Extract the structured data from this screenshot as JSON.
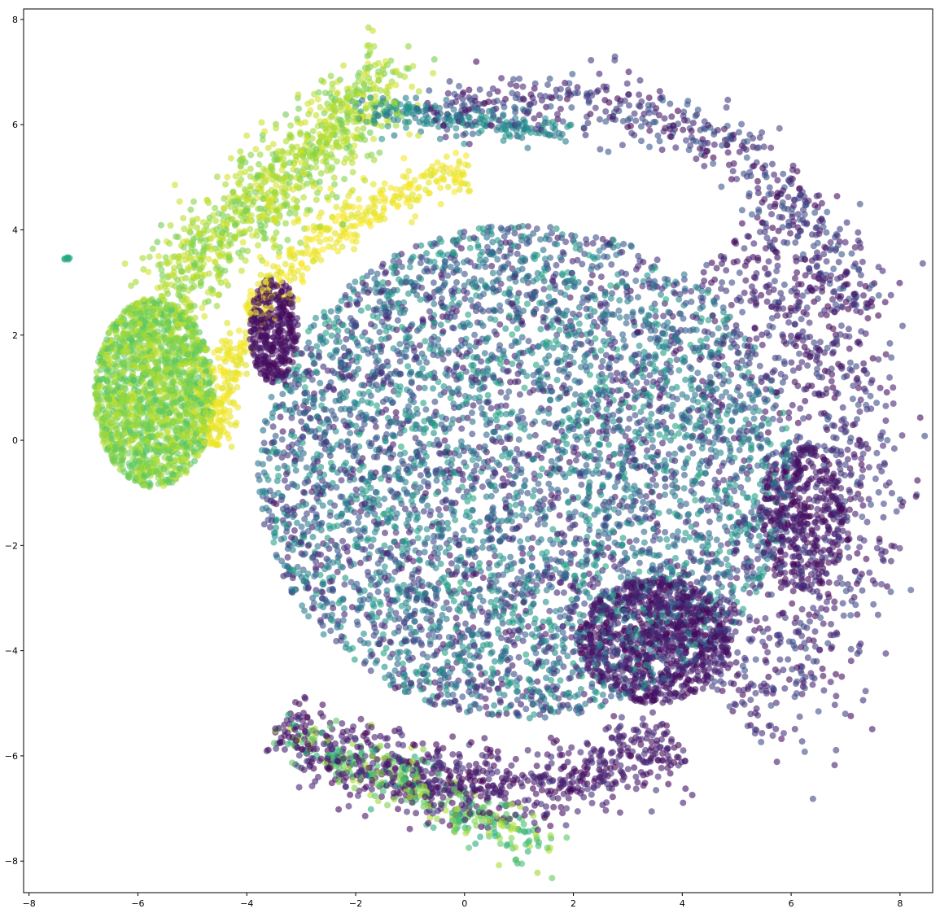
{
  "chart_data": {
    "type": "scatter",
    "title": "",
    "xlabel": "",
    "ylabel": "",
    "xlim": [
      -8.1,
      8.6
    ],
    "ylim": [
      -8.6,
      8.2
    ],
    "xticks": [
      -8,
      -6,
      -4,
      -2,
      0,
      2,
      4,
      6,
      8
    ],
    "yticks": [
      -8,
      -6,
      -4,
      -2,
      0,
      2,
      4,
      6,
      8
    ],
    "xtick_labels": [
      "−8",
      "−6",
      "−4",
      "−2",
      "0",
      "2",
      "4",
      "6",
      "8"
    ],
    "ytick_labels": [
      "−8",
      "−6",
      "−4",
      "−2",
      "0",
      "2",
      "4",
      "6",
      "8"
    ],
    "grid": false,
    "legend": "none",
    "colormap": "viridis",
    "colormap_stops": [
      "#440154",
      "#472c7a",
      "#3b518b",
      "#2c718e",
      "#21908d",
      "#27ad81",
      "#5cc863",
      "#aadc32",
      "#fde725"
    ],
    "marker_alpha": 0.6,
    "clusters": [
      {
        "name": "central-disc",
        "shape": "ellipse",
        "cx": 1.1,
        "cy": -0.6,
        "rx": 4.9,
        "ry": 4.7,
        "count": 5200,
        "color_range": [
          0.05,
          0.6
        ]
      },
      {
        "name": "upper-arc-dark",
        "shape": "arc",
        "cx": 1.5,
        "cy": 0.3,
        "r": 6.2,
        "angle_deg": [
          20,
          110
        ],
        "width": 0.3,
        "count": 500,
        "color_range": [
          0.0,
          0.3
        ]
      },
      {
        "name": "lower-arc-dark",
        "shape": "arc",
        "cx": 0.5,
        "cy": 0.2,
        "r": 6.8,
        "angle_deg": [
          235,
          300
        ],
        "width": 0.35,
        "count": 800,
        "color_range": [
          0.0,
          0.15
        ]
      },
      {
        "name": "right-edge-ring",
        "shape": "arc",
        "cx": 1.1,
        "cy": -0.6,
        "r": 6.0,
        "angle_deg": [
          -50,
          50
        ],
        "width": 0.7,
        "count": 900,
        "color_range": [
          0.0,
          0.25
        ]
      },
      {
        "name": "dark-blob-lower-right",
        "shape": "ellipse",
        "cx": 3.5,
        "cy": -3.8,
        "rx": 1.4,
        "ry": 1.2,
        "count": 900,
        "color_range": [
          0.0,
          0.12
        ]
      },
      {
        "name": "dark-blob-left",
        "shape": "ellipse",
        "cx": -3.5,
        "cy": 2.1,
        "rx": 0.45,
        "ry": 1.0,
        "count": 350,
        "color_range": [
          0.0,
          0.08
        ]
      },
      {
        "name": "dark-blob-right",
        "shape": "ellipse",
        "cx": 6.2,
        "cy": -1.5,
        "rx": 0.8,
        "ry": 1.4,
        "count": 400,
        "color_range": [
          0.0,
          0.12
        ]
      },
      {
        "name": "left-green-lobe",
        "shape": "ellipse",
        "cx": -5.7,
        "cy": 0.9,
        "rx": 1.1,
        "ry": 1.8,
        "count": 1700,
        "color_range": [
          0.72,
          0.92
        ]
      },
      {
        "name": "upper-left-streak",
        "shape": "line",
        "x0": -5.5,
        "y0": 2.8,
        "x1": -1.4,
        "y1": 6.9,
        "width": 0.4,
        "count": 900,
        "color_range": [
          0.78,
          0.95
        ]
      },
      {
        "name": "yellow-band",
        "shape": "arc",
        "cx": 1.1,
        "cy": -0.6,
        "r": 5.8,
        "angle_deg": [
          100,
          175
        ],
        "width": 0.22,
        "count": 500,
        "color_range": [
          0.95,
          1.0
        ]
      },
      {
        "name": "bottom-green-band",
        "shape": "line",
        "x0": -3.2,
        "y0": -5.6,
        "x1": 1.5,
        "y1": -7.7,
        "width": 0.25,
        "count": 350,
        "color_range": [
          0.6,
          0.9
        ]
      },
      {
        "name": "teal-upper-band",
        "shape": "line",
        "x0": -1.8,
        "y0": 6.3,
        "x1": 1.8,
        "y1": 5.9,
        "width": 0.15,
        "count": 200,
        "color_range": [
          0.35,
          0.55
        ]
      },
      {
        "name": "isolated-left-point",
        "shape": "ellipse",
        "cx": -7.3,
        "cy": 3.45,
        "rx": 0.05,
        "ry": 0.05,
        "count": 8,
        "color_range": [
          0.6,
          0.62
        ]
      }
    ]
  }
}
